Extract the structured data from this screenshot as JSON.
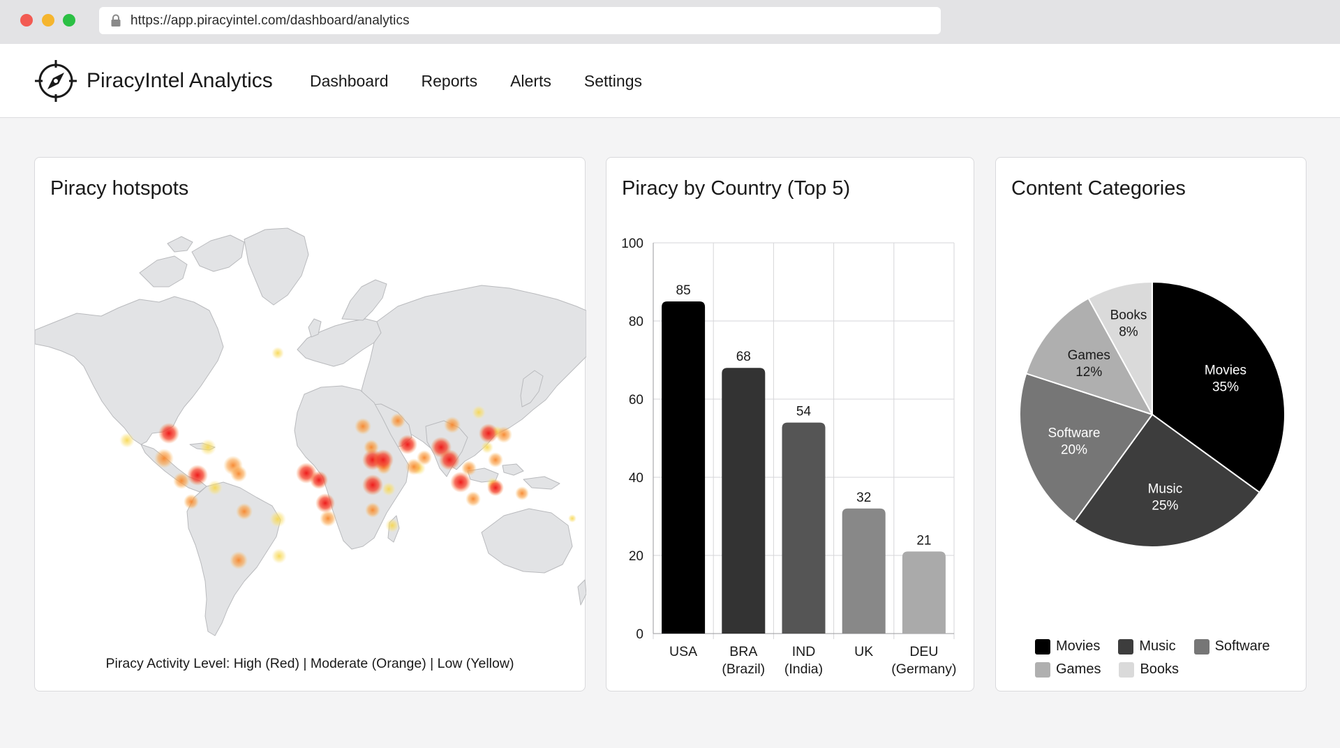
{
  "browser": {
    "url": "https://app.piracyintel.com/dashboard/analytics"
  },
  "header": {
    "app_title": "PiracyIntel Analytics",
    "nav": [
      {
        "label": "Dashboard"
      },
      {
        "label": "Reports"
      },
      {
        "label": "Alerts"
      },
      {
        "label": "Settings"
      }
    ]
  },
  "map_card": {
    "title": "Piracy hotspots",
    "legend": "Piracy Activity Level: High (Red) | Moderate (Orange) | Low (Yellow)",
    "level_colors": {
      "high": "#ee1c1c",
      "moderate": "#f7852a",
      "low": "#f7d548"
    }
  },
  "bar_card": {
    "title": "Piracy by Country (Top 5)"
  },
  "pie_card": {
    "title": "Content Categories"
  },
  "chart_data": [
    {
      "type": "bar",
      "title": "Piracy by Country (Top 5)",
      "categories": [
        {
          "code": "USA",
          "name": ""
        },
        {
          "code": "BRA",
          "name": "(Brazil)"
        },
        {
          "code": "IND",
          "name": "(India)"
        },
        {
          "code": "UK",
          "name": ""
        },
        {
          "code": "DEU",
          "name": "(Germany)"
        }
      ],
      "values": [
        85,
        68,
        54,
        32,
        21
      ],
      "colors": [
        "#000000",
        "#333333",
        "#555555",
        "#888888",
        "#aaaaaa"
      ],
      "ylim": [
        0,
        100
      ],
      "yticks": [
        0,
        20,
        40,
        60,
        80,
        100
      ],
      "grid": true
    },
    {
      "type": "pie",
      "title": "Content Categories",
      "slices": [
        {
          "label": "Movies",
          "value": 35,
          "color": "#000000",
          "text_color": "#ffffff"
        },
        {
          "label": "Music",
          "value": 25,
          "color": "#3d3d3d",
          "text_color": "#ffffff"
        },
        {
          "label": "Software",
          "value": 20,
          "color": "#767676",
          "text_color": "#ffffff"
        },
        {
          "label": "Games",
          "value": 12,
          "color": "#afafaf",
          "text_color": "#1a1a1a"
        },
        {
          "label": "Books",
          "value": 8,
          "color": "#dadada",
          "text_color": "#1a1a1a"
        }
      ],
      "legend_placement": "bottom",
      "legend_rows": [
        [
          "Movies",
          "Music",
          "Software"
        ],
        [
          "Games",
          "Books"
        ]
      ]
    }
  ]
}
